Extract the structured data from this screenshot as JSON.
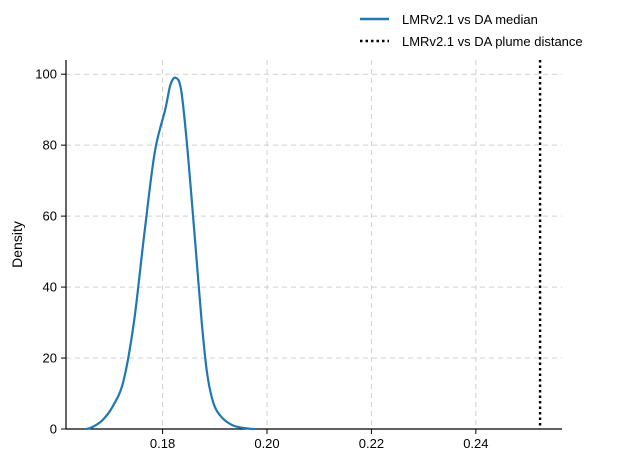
{
  "chart_data": {
    "type": "line",
    "title": "",
    "xlabel": "",
    "ylabel": "Density",
    "xlim": [
      0.1615,
      0.2565
    ],
    "ylim": [
      0,
      104
    ],
    "x_ticks": [
      0.18,
      0.2,
      0.22,
      0.24
    ],
    "x_tick_labels": [
      "0.18",
      "0.20",
      "0.22",
      "0.24"
    ],
    "y_ticks": [
      0,
      20,
      40,
      60,
      80,
      100
    ],
    "y_tick_labels": [
      "0",
      "20",
      "40",
      "60",
      "80",
      "100"
    ],
    "grid": true,
    "legend_position": "top-right",
    "series": [
      {
        "name": "LMRv2.1 vs DA median",
        "style": "solid",
        "color": "#1f77b4",
        "points": [
          [
            0.1653,
            0.0
          ],
          [
            0.1665,
            0.5
          ],
          [
            0.1685,
            2.5
          ],
          [
            0.1705,
            6.5
          ],
          [
            0.1725,
            13.5
          ],
          [
            0.1745,
            30.0
          ],
          [
            0.1765,
            55.0
          ],
          [
            0.1785,
            78.0
          ],
          [
            0.1805,
            90.0
          ],
          [
            0.1815,
            97.0
          ],
          [
            0.1825,
            99.0
          ],
          [
            0.1835,
            96.0
          ],
          [
            0.1845,
            83.0
          ],
          [
            0.1855,
            66.0
          ],
          [
            0.1865,
            48.0
          ],
          [
            0.1875,
            30.0
          ],
          [
            0.1885,
            16.0
          ],
          [
            0.1897,
            7.5
          ],
          [
            0.1912,
            3.5
          ],
          [
            0.1935,
            1.0
          ],
          [
            0.1965,
            0.1
          ],
          [
            0.1975,
            0.0
          ]
        ]
      },
      {
        "name": "LMRv2.1 vs DA plume distance",
        "style": "dotted",
        "color": "#000000",
        "x_value": 0.2523
      }
    ]
  }
}
